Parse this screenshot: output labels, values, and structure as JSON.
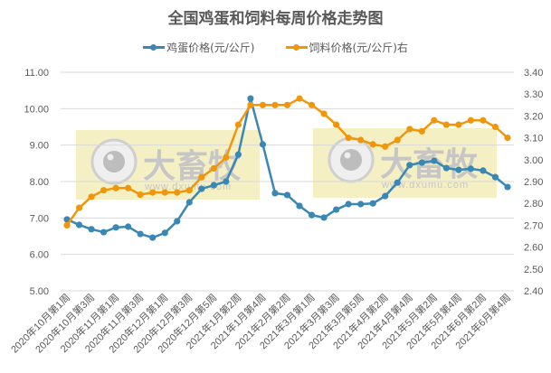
{
  "chart_data": {
    "type": "line",
    "title": "全国鸡蛋和饲料每周价格走势图",
    "xlabel": "",
    "ylabel": "",
    "grid": true,
    "legend_position": "top",
    "x_tick_labels": [
      "2020年10月第1周",
      "2020年10月第3周",
      "2020年11月第1周",
      "2020年11月第3周",
      "2020年12月第1周",
      "2020年12月第3周",
      "2020年12月第5周",
      "2021年1月第2周",
      "2021年1月第4周",
      "2021年2月第2周",
      "2021年3月第1周",
      "2021年3月第3周",
      "2021年3月第5周",
      "2021年4月第2周",
      "2021年4月第4周",
      "2021年5月第2周",
      "2021年5月第4周",
      "2021年6月第2周",
      "2021年6月第4周"
    ],
    "point_count": 37,
    "left_axis": {
      "ylim": [
        5.0,
        11.0
      ],
      "ticks": [
        "5.00",
        "6.00",
        "7.00",
        "8.00",
        "9.00",
        "10.00",
        "11.00"
      ]
    },
    "right_axis": {
      "ylim": [
        2.4,
        3.4
      ],
      "ticks": [
        "2.40",
        "2.50",
        "2.60",
        "2.70",
        "2.80",
        "2.90",
        "3.00",
        "3.10",
        "3.20",
        "3.30",
        "3.40"
      ]
    },
    "series": [
      {
        "name": "鸡蛋价格(元/公斤)",
        "axis": "left",
        "color": "#3a87b4",
        "values": [
          6.96,
          6.81,
          6.69,
          6.61,
          6.74,
          6.76,
          6.56,
          6.46,
          6.59,
          6.91,
          7.43,
          7.8,
          7.9,
          8.0,
          8.74,
          10.28,
          9.02,
          7.68,
          7.63,
          7.33,
          7.08,
          7.01,
          7.23,
          7.38,
          7.38,
          7.4,
          7.6,
          7.97,
          8.45,
          8.52,
          8.57,
          8.37,
          8.32,
          8.35,
          8.3,
          8.12,
          7.85
        ]
      },
      {
        "name": "饲料价格(元/公斤)右",
        "axis": "right",
        "color": "#f0960a",
        "values": [
          2.7,
          2.78,
          2.83,
          2.86,
          2.87,
          2.87,
          2.84,
          2.85,
          2.85,
          2.85,
          2.86,
          2.92,
          2.96,
          3.01,
          3.16,
          3.25,
          3.25,
          3.25,
          3.25,
          3.28,
          3.25,
          3.21,
          3.16,
          3.1,
          3.09,
          3.07,
          3.06,
          3.09,
          3.14,
          3.13,
          3.18,
          3.16,
          3.16,
          3.18,
          3.18,
          3.15,
          3.1
        ]
      }
    ]
  },
  "watermark": {
    "brand": "大畜牧",
    "url": "www.dxumu.com",
    "count": 2
  }
}
